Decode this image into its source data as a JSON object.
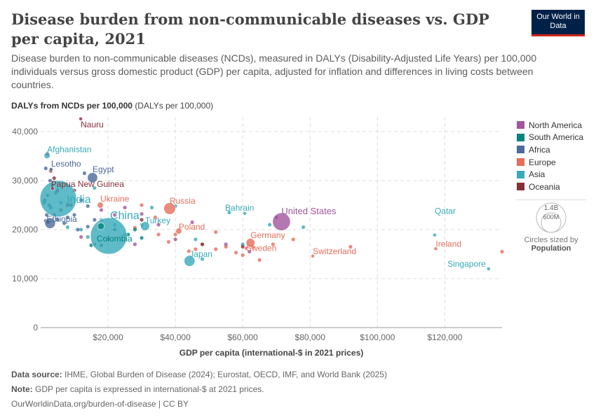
{
  "header": {
    "title": "Disease burden from non-communicable diseases vs. GDP per capita, 2021",
    "logo": "Our World in Data",
    "subtitle": "Disease burden to non-communicable diseases (NCDs), measured in DALYs (Disability-Adjusted Life Years) per 100,000 individuals versus gross domestic product (GDP) per capita, adjusted for inflation and differences in living costs between countries."
  },
  "chart_data": {
    "type": "scatter",
    "ylabel": "DALYs from NCDs per 100,000",
    "yunit": "(DALYs per 100,000)",
    "xlabel": "GDP per capita (international-$ in 2021 prices)",
    "xlim": [
      0,
      137000
    ],
    "ylim": [
      0,
      43000
    ],
    "xticks": [
      {
        "v": 20000,
        "t": "$20,000"
      },
      {
        "v": 40000,
        "t": "$40,000"
      },
      {
        "v": 60000,
        "t": "$60,000"
      },
      {
        "v": 80000,
        "t": "$80,000"
      },
      {
        "v": 100000,
        "t": "$100,000"
      },
      {
        "v": 120000,
        "t": "$120,000"
      }
    ],
    "yticks": [
      {
        "v": 0,
        "t": "0"
      },
      {
        "v": 10000,
        "t": "10,000"
      },
      {
        "v": 20000,
        "t": "20,000"
      },
      {
        "v": 30000,
        "t": "30,000"
      },
      {
        "v": 40000,
        "t": "40,000"
      }
    ],
    "grid": true,
    "legend_position": "right",
    "regions": [
      {
        "name": "North America",
        "color": "#a2559c"
      },
      {
        "name": "South America",
        "color": "#00847e"
      },
      {
        "name": "Africa",
        "color": "#4c6a9c"
      },
      {
        "name": "Europe",
        "color": "#e56e5a"
      },
      {
        "name": "Asia",
        "color": "#38aaba"
      },
      {
        "name": "Oceania",
        "color": "#883039"
      }
    ],
    "size_legend": {
      "values": [
        "1.4B",
        "600M"
      ],
      "label": "Circles sized by",
      "variable": "Population"
    },
    "labeled_points": [
      {
        "name": "Nauru",
        "region": "Oceania",
        "x": 11900,
        "y": 42600,
        "pop_m": 0.01
      },
      {
        "name": "Afghanistan",
        "region": "Asia",
        "x": 1900,
        "y": 35100,
        "pop_m": 40
      },
      {
        "name": "Lesotho",
        "region": "Africa",
        "x": 3100,
        "y": 32300,
        "pop_m": 2.3
      },
      {
        "name": "Egypt",
        "region": "Africa",
        "x": 15400,
        "y": 30600,
        "pop_m": 110
      },
      {
        "name": "Papua New Guinea",
        "region": "Oceania",
        "x": 3500,
        "y": 28400,
        "pop_m": 10
      },
      {
        "name": "India",
        "region": "Asia",
        "x": 5200,
        "y": 26300,
        "pop_m": 1410
      },
      {
        "name": "Ukraine",
        "region": "Europe",
        "x": 17700,
        "y": 25000,
        "pop_m": 38
      },
      {
        "name": "Russia",
        "region": "Europe",
        "x": 38300,
        "y": 24300,
        "pop_m": 145
      },
      {
        "name": "Ethiopia",
        "region": "Africa",
        "x": 2800,
        "y": 21300,
        "pop_m": 120
      },
      {
        "name": "China",
        "region": "Asia",
        "x": 20200,
        "y": 18700,
        "pop_m": 1420
      },
      {
        "name": "Colombia",
        "region": "South America",
        "x": 17900,
        "y": 20700,
        "pop_m": 51
      },
      {
        "name": "Turkey",
        "region": "Asia",
        "x": 31000,
        "y": 20700,
        "pop_m": 85
      },
      {
        "name": "Poland",
        "region": "Europe",
        "x": 41000,
        "y": 19700,
        "pop_m": 38
      },
      {
        "name": "Japan",
        "region": "Asia",
        "x": 44200,
        "y": 13600,
        "pop_m": 125
      },
      {
        "name": "Germany",
        "region": "Europe",
        "x": 62300,
        "y": 17300,
        "pop_m": 83
      },
      {
        "name": "Sweden",
        "region": "Europe",
        "x": 61000,
        "y": 16200,
        "pop_m": 10
      },
      {
        "name": "Switzerland",
        "region": "Europe",
        "x": 80800,
        "y": 14600,
        "pop_m": 8.7
      },
      {
        "name": "United States",
        "region": "North America",
        "x": 71500,
        "y": 21600,
        "pop_m": 337
      },
      {
        "name": "Bahrain",
        "region": "Asia",
        "x": 60600,
        "y": 23300,
        "pop_m": 1.5
      },
      {
        "name": "Qatar",
        "region": "Asia",
        "x": 117000,
        "y": 18900,
        "pop_m": 2.7
      },
      {
        "name": "Ireland",
        "region": "Europe",
        "x": 117300,
        "y": 16100,
        "pop_m": 5
      },
      {
        "name": "Singapore",
        "region": "Asia",
        "x": 133000,
        "y": 12000,
        "pop_m": 5.9
      }
    ],
    "other_points": {
      "Africa": [
        [
          1500,
          32500
        ],
        [
          2000,
          27000
        ],
        [
          1200,
          26000
        ],
        [
          1000,
          25500
        ],
        [
          2500,
          25000
        ],
        [
          3000,
          24500
        ],
        [
          1800,
          23000
        ],
        [
          4000,
          23000
        ],
        [
          6000,
          24000
        ],
        [
          8000,
          22500
        ],
        [
          5000,
          22000
        ],
        [
          2200,
          21500
        ],
        [
          1500,
          21800
        ],
        [
          7000,
          21300
        ],
        [
          10000,
          23000
        ],
        [
          3500,
          29000
        ],
        [
          12000,
          26000
        ],
        [
          14000,
          24800
        ],
        [
          16000,
          22000
        ],
        [
          14000,
          20600
        ],
        [
          11000,
          20000
        ],
        [
          4500,
          27500
        ],
        [
          9000,
          25000
        ],
        [
          13000,
          31500
        ],
        [
          2800,
          30000
        ]
      ],
      "Asia": [
        [
          6000,
          25500
        ],
        [
          16000,
          28500
        ],
        [
          18000,
          22000
        ],
        [
          22000,
          21000
        ],
        [
          25000,
          19000
        ],
        [
          30000,
          21000
        ],
        [
          14000,
          18500
        ],
        [
          12000,
          20000
        ],
        [
          8000,
          20500
        ],
        [
          48000,
          14000
        ],
        [
          60000,
          17000
        ],
        [
          68000,
          21000
        ],
        [
          78000,
          20500
        ],
        [
          56000,
          23500
        ],
        [
          33000,
          24500
        ],
        [
          46000,
          18000
        ],
        [
          40000,
          24800
        ]
      ],
      "Europe": [
        [
          28000,
          20400
        ],
        [
          35000,
          19000
        ],
        [
          30000,
          25000
        ],
        [
          38000,
          17500
        ],
        [
          40000,
          19000
        ],
        [
          44000,
          15600
        ],
        [
          46000,
          16000
        ],
        [
          48000,
          17000
        ],
        [
          52000,
          16000
        ],
        [
          55000,
          16500
        ],
        [
          58000,
          15300
        ],
        [
          60000,
          14800
        ],
        [
          65000,
          13800
        ],
        [
          63000,
          16500
        ],
        [
          69000,
          17000
        ],
        [
          75000,
          18000
        ],
        [
          92000,
          16500
        ],
        [
          137000,
          15500
        ],
        [
          34000,
          22500
        ],
        [
          52000,
          19500
        ]
      ],
      "North America": [
        [
          18000,
          24000
        ],
        [
          22000,
          23000
        ],
        [
          25000,
          24500
        ],
        [
          30000,
          23200
        ],
        [
          20000,
          18000
        ],
        [
          12000,
          18500
        ],
        [
          28000,
          17000
        ],
        [
          35000,
          21000
        ],
        [
          45000,
          21500
        ],
        [
          55000,
          17000
        ],
        [
          62000,
          15500
        ],
        [
          70000,
          22500
        ],
        [
          40000,
          18000
        ],
        [
          16000,
          17000
        ]
      ],
      "South America": [
        [
          18000,
          16800
        ],
        [
          15000,
          16800
        ],
        [
          22000,
          20000
        ],
        [
          26000,
          19000
        ],
        [
          30000,
          18300
        ],
        [
          28000,
          20000
        ]
      ],
      "Oceania": [
        [
          3000,
          32000
        ],
        [
          4000,
          30500
        ],
        [
          5000,
          28000
        ],
        [
          2000,
          35500
        ],
        [
          8000,
          25000
        ],
        [
          10000,
          28000
        ],
        [
          60000,
          16500
        ],
        [
          48000,
          17000
        ],
        [
          30000,
          22000
        ]
      ]
    }
  },
  "footer": {
    "source_label": "Data source:",
    "source": "IHME, Global Burden of Disease (2024); Eurostat, OECD, IMF, and World Bank (2025)",
    "note_label": "Note:",
    "note": "GDP per capita is expressed in international-$ at 2021 prices.",
    "url": "OurWorldinData.org/burden-of-disease | CC BY"
  }
}
